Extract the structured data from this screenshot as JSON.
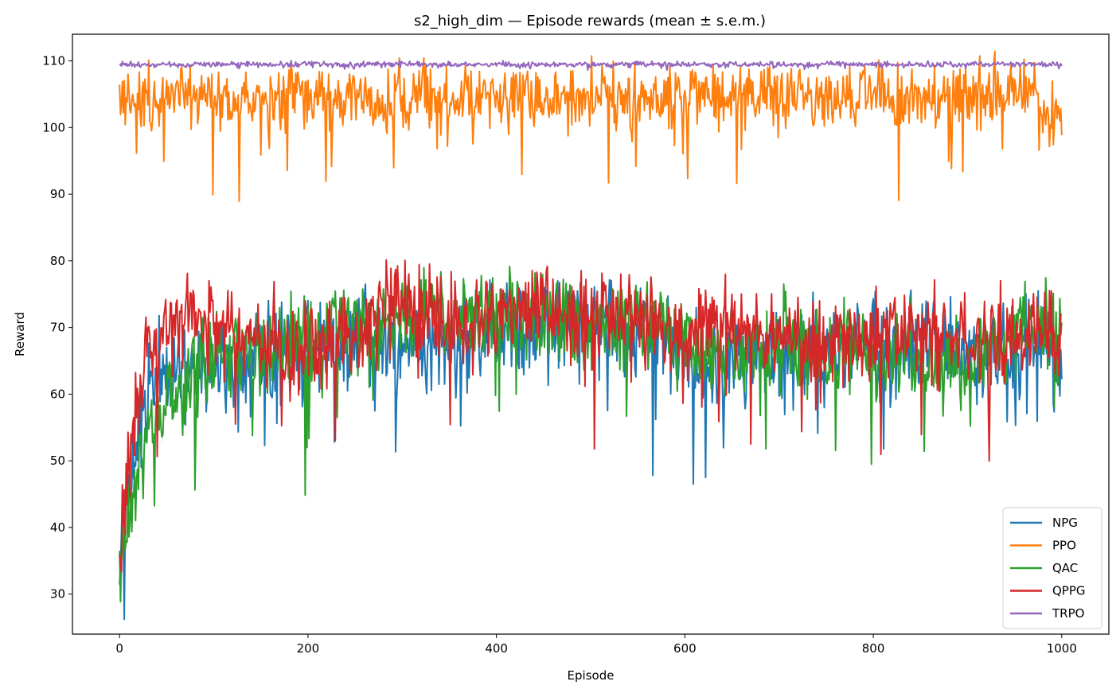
{
  "chart_data": {
    "type": "line",
    "title": "s2_high_dim — Episode rewards (mean ± s.e.m.)",
    "xlabel": "Episode",
    "ylabel": "Reward",
    "xlim": [
      -50,
      1050
    ],
    "ylim": [
      24,
      114
    ],
    "xticks": [
      0,
      200,
      400,
      600,
      800,
      1000
    ],
    "yticks": [
      30,
      40,
      50,
      60,
      70,
      80,
      90,
      100,
      110
    ],
    "legend_position": "lower-right",
    "x": [
      0,
      10,
      20,
      30,
      40,
      50,
      75,
      100,
      125,
      150,
      175,
      200,
      225,
      250,
      275,
      300,
      325,
      350,
      375,
      400,
      425,
      450,
      475,
      500,
      525,
      550,
      575,
      600,
      625,
      650,
      675,
      700,
      725,
      750,
      775,
      800,
      825,
      850,
      875,
      900,
      925,
      950,
      975,
      1000
    ],
    "series": [
      {
        "name": "NPG",
        "color": "#1f77b4",
        "values": [
          38,
          47,
          55,
          60,
          61,
          63,
          63,
          64,
          64,
          65,
          66,
          66,
          67,
          68,
          68,
          66,
          66,
          68,
          68,
          69,
          70,
          71,
          71,
          72,
          70,
          69,
          69,
          66,
          63,
          66,
          66,
          66,
          67,
          66,
          67,
          68,
          67,
          67,
          67,
          67,
          67,
          66,
          68,
          64
        ]
      },
      {
        "name": "PPO",
        "color": "#ff7f0e",
        "values": [
          103,
          105,
          104,
          105,
          104,
          105,
          104,
          105,
          104,
          105,
          105,
          105,
          104,
          105,
          104,
          105,
          105,
          104,
          105,
          104,
          105,
          105,
          104,
          105,
          105,
          104,
          105,
          105,
          104,
          104,
          105,
          105,
          104,
          105,
          105,
          105,
          104,
          105,
          104,
          104,
          105,
          105,
          106,
          99.5
        ]
      },
      {
        "name": "QAC",
        "color": "#2ca02c",
        "values": [
          34,
          42,
          48,
          53,
          55,
          57,
          62,
          65,
          66,
          66,
          67,
          69,
          70,
          71,
          72,
          72,
          72,
          72,
          72,
          72,
          72,
          72,
          72,
          72,
          71,
          71,
          71,
          68,
          66,
          67,
          67,
          67,
          66,
          65,
          66,
          66,
          66,
          66,
          65,
          65,
          66,
          70,
          71,
          69
        ]
      },
      {
        "name": "QPPG",
        "color": "#d62728",
        "values": [
          36,
          50,
          62,
          66,
          68,
          70,
          71,
          71,
          70,
          68,
          67,
          67,
          67,
          69,
          73,
          73,
          72,
          71,
          71,
          71,
          72,
          72,
          72,
          72,
          72,
          71,
          71,
          68,
          70,
          71,
          70,
          69,
          68,
          66,
          68,
          69,
          69,
          70,
          69,
          69,
          69,
          68,
          69,
          70
        ]
      },
      {
        "name": "TRPO",
        "color": "#9467bd",
        "values": [
          109.5,
          109.5,
          109.4,
          109.5,
          109.5,
          109.6,
          109.4,
          109.5,
          109.5,
          109.4,
          109.5,
          109.5,
          109.5,
          109.4,
          109.5,
          109.5,
          109.5,
          109.4,
          109.5,
          109.6,
          109.4,
          109.5,
          109.5,
          109.5,
          109.4,
          109.5,
          109.5,
          109.5,
          109.4,
          109.5,
          109.5,
          109.5,
          109.4,
          109.5,
          109.5,
          109.5,
          109.4,
          109.5,
          109.5,
          109.4,
          109.5,
          109.5,
          109.5,
          109.4
        ]
      }
    ]
  }
}
